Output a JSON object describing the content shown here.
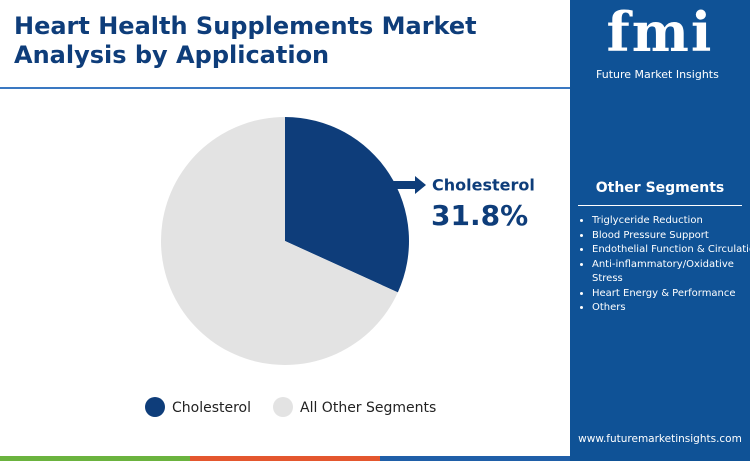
{
  "chart_data": {
    "type": "pie",
    "title": "Heart Health Supplements Market Analysis by Application",
    "categories": [
      "Cholesterol",
      "All Other Segments"
    ],
    "values": [
      31.8,
      68.2
    ],
    "value_labels": [
      "31.8%",
      null
    ],
    "colors": [
      "#0e3d7a",
      "#e3e3e3"
    ],
    "highlight": 0
  },
  "sidebar": {
    "logo": "fmi",
    "brand": "Future Market Insights",
    "heading": "Other Segments",
    "items": [
      "Triglyceride Reduction",
      "Blood Pressure Support",
      "Endothelial Function & Circulation",
      "Anti-inflammatory/Oxidative Stress",
      "Heart Energy & Performance",
      "Others"
    ],
    "website": "www.futuremarketinsights.com"
  }
}
